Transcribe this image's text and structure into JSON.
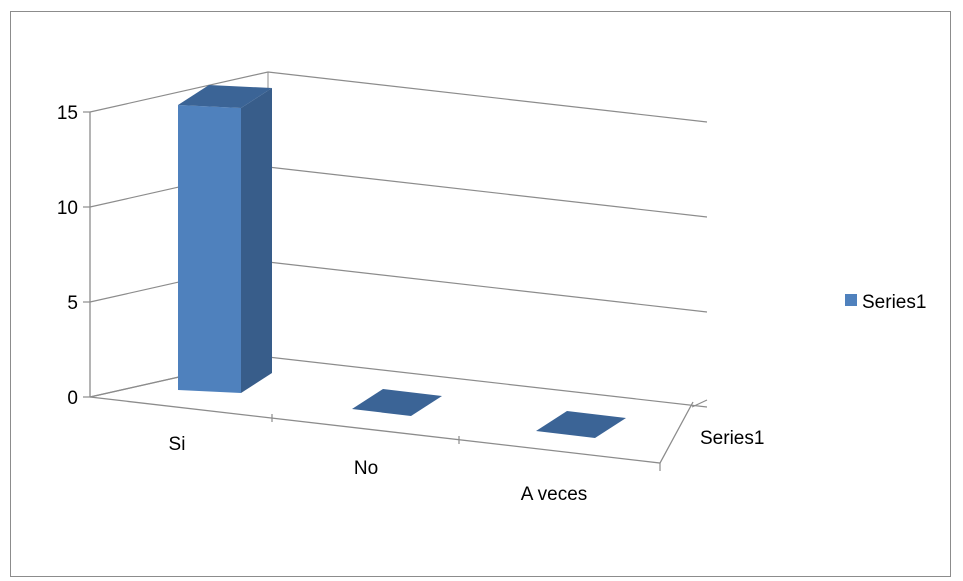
{
  "chart_data": {
    "type": "bar",
    "style": "3d-column",
    "categories": [
      "Si",
      "No",
      "A veces"
    ],
    "series": [
      {
        "name": "Series1",
        "values": [
          15,
          0,
          0
        ],
        "color": "#4f81bd"
      }
    ],
    "y_ticks": [
      "0",
      "5",
      "10",
      "15"
    ],
    "ylim": [
      0,
      15
    ],
    "depth_axis_label": "Series1",
    "grid": true,
    "legend": {
      "position": "right",
      "entries": [
        "Series1"
      ]
    }
  }
}
